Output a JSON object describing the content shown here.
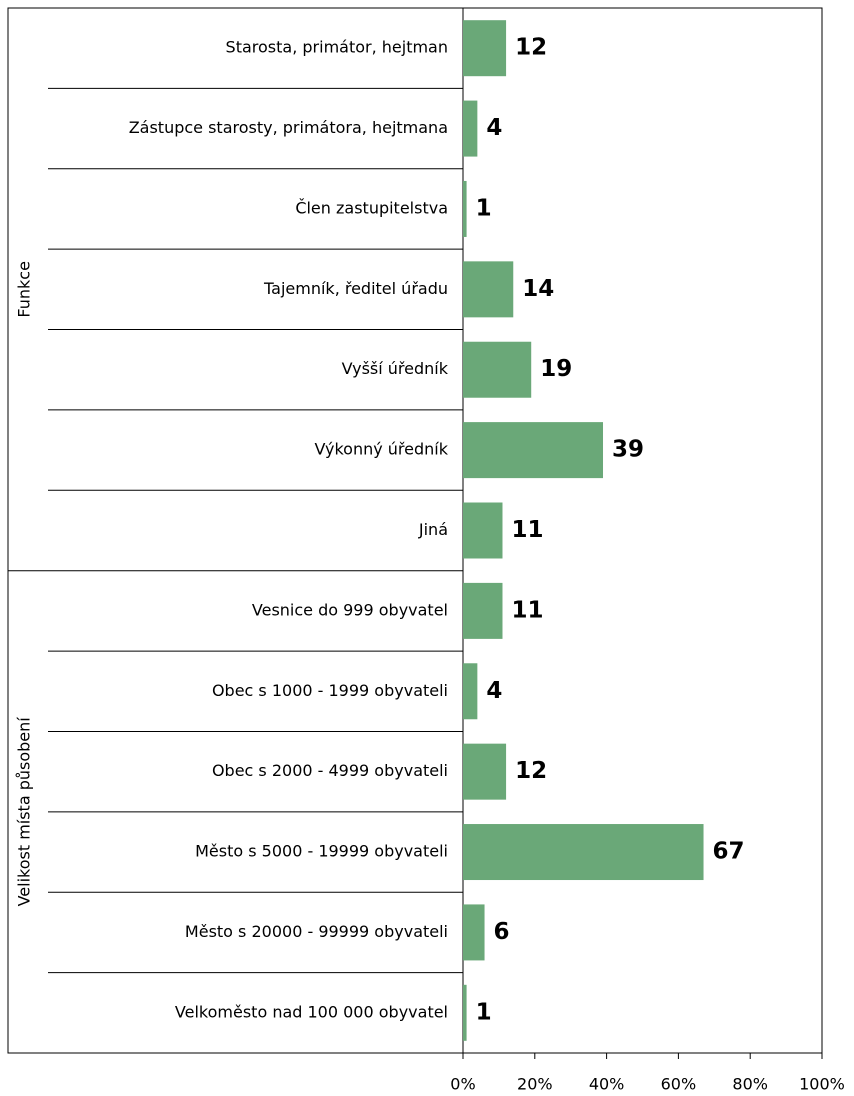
{
  "chart_data": {
    "type": "bar",
    "color": "#6aa878",
    "groups": [
      {
        "label": "Funkce",
        "categories": [
          "Starosta, primátor, hejtman",
          "Zástupce starosty, primátora, hejtmana",
          "Člen zastupitelstva",
          "Tajemník, ředitel úřadu",
          "Vyšší úředník",
          "Výkonný úředník",
          "Jiná"
        ],
        "values": [
          12,
          4,
          1,
          14,
          19,
          39,
          11
        ]
      },
      {
        "label": "Velikost místa působení",
        "categories": [
          "Vesnice do 999 obyvatel",
          "Obec s 1000 - 1999 obyvateli",
          "Obec s 2000 - 4999 obyvateli",
          "Město s 5000 - 19999 obyvateli",
          "Město s 20000 - 99999 obyvateli",
          "Velkoměsto nad 100 000 obyvatel"
        ],
        "values": [
          11,
          4,
          12,
          67,
          6,
          1
        ]
      }
    ],
    "xlim": [
      0,
      100
    ],
    "xticks": [
      {
        "value": 0,
        "label": "0%"
      },
      {
        "value": 20,
        "label": "20%"
      },
      {
        "value": 40,
        "label": "40%"
      },
      {
        "value": 60,
        "label": "60%"
      },
      {
        "value": 80,
        "label": "80%"
      },
      {
        "value": 100,
        "label": "100%"
      }
    ]
  }
}
